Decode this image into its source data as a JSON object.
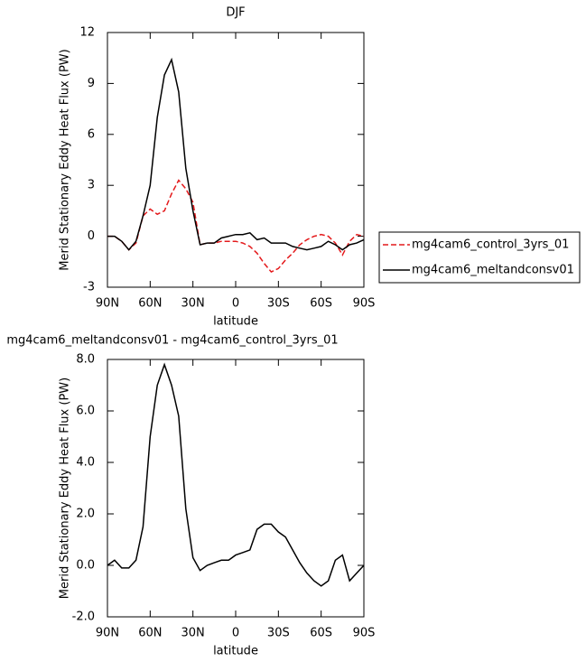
{
  "chart_data": [
    {
      "type": "line",
      "title": "DJF",
      "x_label": "latitude",
      "y_label": "Merid Stationary Eddy Heat Flux (PW)",
      "x": [
        90,
        85,
        80,
        75,
        70,
        65,
        60,
        55,
        50,
        45,
        40,
        35,
        30,
        25,
        20,
        15,
        10,
        5,
        0,
        -5,
        -10,
        -15,
        -20,
        -25,
        -30,
        -35,
        -40,
        -45,
        -50,
        -55,
        -60,
        -65,
        -70,
        -75,
        -80,
        -85,
        -90
      ],
      "xlim": [
        90,
        -90
      ],
      "xticks": [
        {
          "value": 90,
          "label": "90N"
        },
        {
          "value": 60,
          "label": "60N"
        },
        {
          "value": 30,
          "label": "30N"
        },
        0,
        {
          "value": -30,
          "label": "30S"
        },
        {
          "value": -60,
          "label": "60S"
        },
        {
          "value": -90,
          "label": "90S"
        }
      ],
      "ylim": [
        -3,
        12
      ],
      "yticks": [
        -3,
        0,
        3,
        6,
        9,
        12
      ],
      "legend": "right",
      "series": [
        {
          "name": "mg4cam6_control_3yrs_01",
          "color": "#e41a1c",
          "style": "dashed",
          "values": [
            0,
            0,
            -0.3,
            -0.8,
            -0.4,
            1.2,
            1.6,
            1.3,
            1.5,
            2.5,
            3.3,
            2.8,
            2.0,
            -0.5,
            -0.4,
            -0.4,
            -0.3,
            -0.3,
            -0.3,
            -0.4,
            -0.6,
            -1.0,
            -1.6,
            -2.1,
            -1.9,
            -1.4,
            -1.0,
            -0.5,
            -0.2,
            0,
            0.1,
            0,
            -0.4,
            -1.1,
            -0.3,
            0.1,
            0
          ]
        },
        {
          "name": "mg4cam6_meltandconsv01",
          "color": "#000000",
          "style": "solid",
          "values": [
            0,
            0,
            -0.3,
            -0.8,
            -0.3,
            1.2,
            3.0,
            7.0,
            9.5,
            10.4,
            8.5,
            4.0,
            1.5,
            -0.5,
            -0.4,
            -0.4,
            -0.1,
            0,
            0.1,
            0.1,
            0.2,
            -0.2,
            -0.1,
            -0.4,
            -0.4,
            -0.4,
            -0.6,
            -0.7,
            -0.8,
            -0.7,
            -0.6,
            -0.3,
            -0.5,
            -0.8,
            -0.5,
            -0.4,
            -0.2
          ]
        }
      ]
    },
    {
      "type": "line",
      "title": "mg4cam6_meltandconsv01 - mg4cam6_control_3yrs_01",
      "x_label": "latitude",
      "y_label": "Merid Stationary Eddy Heat Flux (PW)",
      "x": [
        90,
        85,
        80,
        75,
        70,
        65,
        60,
        55,
        50,
        45,
        40,
        35,
        30,
        25,
        20,
        15,
        10,
        5,
        0,
        -5,
        -10,
        -15,
        -20,
        -25,
        -30,
        -35,
        -40,
        -45,
        -50,
        -55,
        -60,
        -65,
        -70,
        -75,
        -80,
        -85,
        -90
      ],
      "xlim": [
        90,
        -90
      ],
      "xticks": [
        {
          "value": 90,
          "label": "90N"
        },
        {
          "value": 60,
          "label": "60N"
        },
        {
          "value": 30,
          "label": "30N"
        },
        0,
        {
          "value": -30,
          "label": "30S"
        },
        {
          "value": -60,
          "label": "60S"
        },
        {
          "value": -90,
          "label": "90S"
        }
      ],
      "ylim": [
        -2,
        8
      ],
      "yticks": [
        {
          "value": -2,
          "label": "-2.0"
        },
        {
          "value": 0,
          "label": "0.0"
        },
        {
          "value": 2,
          "label": "2.0"
        },
        {
          "value": 4,
          "label": "4.0"
        },
        {
          "value": 6,
          "label": "6.0"
        },
        {
          "value": 8,
          "label": "8.0"
        }
      ],
      "series": [
        {
          "color": "#000000",
          "style": "solid",
          "values": [
            0,
            0.2,
            -0.1,
            -0.1,
            0.2,
            1.5,
            5.0,
            7.0,
            7.8,
            7.0,
            5.8,
            2.2,
            0.3,
            -0.2,
            0,
            0.1,
            0.2,
            0.2,
            0.4,
            0.5,
            0.6,
            1.4,
            1.6,
            1.6,
            1.3,
            1.1,
            0.6,
            0.1,
            -0.3,
            -0.6,
            -0.8,
            -0.6,
            0.2,
            0.4,
            -0.6,
            -0.3,
            0
          ]
        }
      ]
    }
  ]
}
